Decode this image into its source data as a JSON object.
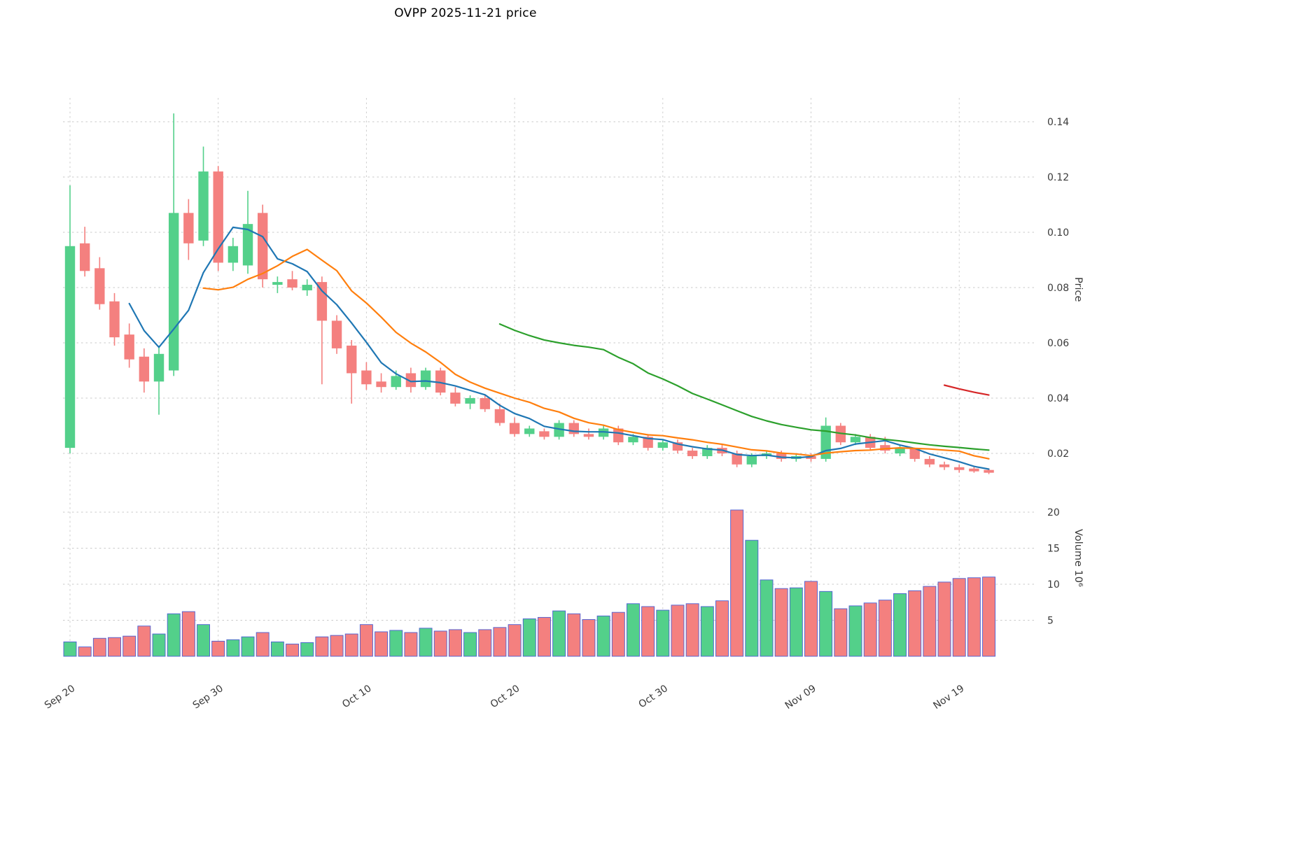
{
  "title": "OVPP  2025-11-21  price",
  "chart_data": {
    "type": "candlestick",
    "symbol": "OVPP",
    "as_of_date": "2025-11-21",
    "title": "OVPP  2025-11-21  price",
    "grid": true,
    "x_tick_labels": [
      "Sep 20",
      "Sep 30",
      "Oct 10",
      "Oct 20",
      "Oct 30",
      "Nov 09",
      "Nov 19"
    ],
    "x_tick_indices": [
      0,
      10,
      20,
      30,
      40,
      50,
      60
    ],
    "price_axis": {
      "label": "Price",
      "ticks": [
        0.02,
        0.04,
        0.06,
        0.08,
        0.1,
        0.12,
        0.14
      ],
      "range": [
        0.007,
        0.1486
      ]
    },
    "volume_axis": {
      "label": "Volume  10⁶",
      "ticks": [
        5,
        10,
        15,
        20
      ],
      "range": [
        0,
        21
      ],
      "unit": "millions"
    },
    "moving_averages": [
      {
        "window": 5,
        "color": "#1f77b4"
      },
      {
        "window": 10,
        "color": "#ff7f0e"
      },
      {
        "window": 30,
        "color": "#2ca02c"
      },
      {
        "window": 60,
        "color": "#d62728"
      }
    ],
    "colors": {
      "up": "#53d08a",
      "down": "#f4807f",
      "volume_edge": "#4c5fd5",
      "grid": "#c9c9c9",
      "tick_text": "#3a3a3a"
    },
    "candles": [
      {
        "date": "2025-09-20",
        "open": 0.022,
        "high": 0.117,
        "low": 0.02,
        "close": 0.095,
        "volume": 2.0
      },
      {
        "date": "2025-09-21",
        "open": 0.096,
        "high": 0.102,
        "low": 0.084,
        "close": 0.086,
        "volume": 1.3
      },
      {
        "date": "2025-09-22",
        "open": 0.087,
        "high": 0.091,
        "low": 0.072,
        "close": 0.074,
        "volume": 2.5
      },
      {
        "date": "2025-09-23",
        "open": 0.075,
        "high": 0.078,
        "low": 0.059,
        "close": 0.062,
        "volume": 2.6
      },
      {
        "date": "2025-09-24",
        "open": 0.063,
        "high": 0.067,
        "low": 0.051,
        "close": 0.054,
        "volume": 2.8
      },
      {
        "date": "2025-09-25",
        "open": 0.055,
        "high": 0.058,
        "low": 0.042,
        "close": 0.046,
        "volume": 4.2
      },
      {
        "date": "2025-09-26",
        "open": 0.046,
        "high": 0.059,
        "low": 0.034,
        "close": 0.056,
        "volume": 3.1
      },
      {
        "date": "2025-09-27",
        "open": 0.05,
        "high": 0.143,
        "low": 0.048,
        "close": 0.107,
        "volume": 5.9
      },
      {
        "date": "2025-09-28",
        "open": 0.107,
        "high": 0.112,
        "low": 0.09,
        "close": 0.096,
        "volume": 6.2
      },
      {
        "date": "2025-09-29",
        "open": 0.097,
        "high": 0.131,
        "low": 0.095,
        "close": 0.122,
        "volume": 4.4
      },
      {
        "date": "2025-09-30",
        "open": 0.122,
        "high": 0.124,
        "low": 0.086,
        "close": 0.089,
        "volume": 2.1
      },
      {
        "date": "2025-10-01",
        "open": 0.089,
        "high": 0.098,
        "low": 0.086,
        "close": 0.095,
        "volume": 2.3
      },
      {
        "date": "2025-10-02",
        "open": 0.088,
        "high": 0.115,
        "low": 0.085,
        "close": 0.103,
        "volume": 2.7
      },
      {
        "date": "2025-10-03",
        "open": 0.107,
        "high": 0.11,
        "low": 0.08,
        "close": 0.083,
        "volume": 3.3
      },
      {
        "date": "2025-10-04",
        "open": 0.081,
        "high": 0.084,
        "low": 0.078,
        "close": 0.082,
        "volume": 2.0
      },
      {
        "date": "2025-10-05",
        "open": 0.083,
        "high": 0.086,
        "low": 0.079,
        "close": 0.08,
        "volume": 1.7
      },
      {
        "date": "2025-10-06",
        "open": 0.079,
        "high": 0.083,
        "low": 0.077,
        "close": 0.081,
        "volume": 1.9
      },
      {
        "date": "2025-10-07",
        "open": 0.082,
        "high": 0.084,
        "low": 0.045,
        "close": 0.068,
        "volume": 2.7
      },
      {
        "date": "2025-10-08",
        "open": 0.068,
        "high": 0.07,
        "low": 0.056,
        "close": 0.058,
        "volume": 2.9
      },
      {
        "date": "2025-10-09",
        "open": 0.059,
        "high": 0.061,
        "low": 0.038,
        "close": 0.049,
        "volume": 3.1
      },
      {
        "date": "2025-10-10",
        "open": 0.05,
        "high": 0.053,
        "low": 0.043,
        "close": 0.045,
        "volume": 4.4
      },
      {
        "date": "2025-10-11",
        "open": 0.046,
        "high": 0.049,
        "low": 0.042,
        "close": 0.044,
        "volume": 3.4
      },
      {
        "date": "2025-10-12",
        "open": 0.044,
        "high": 0.05,
        "low": 0.043,
        "close": 0.048,
        "volume": 3.6
      },
      {
        "date": "2025-10-13",
        "open": 0.049,
        "high": 0.051,
        "low": 0.042,
        "close": 0.044,
        "volume": 3.3
      },
      {
        "date": "2025-10-14",
        "open": 0.044,
        "high": 0.051,
        "low": 0.043,
        "close": 0.05,
        "volume": 3.9
      },
      {
        "date": "2025-10-15",
        "open": 0.05,
        "high": 0.051,
        "low": 0.041,
        "close": 0.042,
        "volume": 3.5
      },
      {
        "date": "2025-10-16",
        "open": 0.042,
        "high": 0.044,
        "low": 0.037,
        "close": 0.038,
        "volume": 3.7
      },
      {
        "date": "2025-10-17",
        "open": 0.038,
        "high": 0.041,
        "low": 0.036,
        "close": 0.04,
        "volume": 3.3
      },
      {
        "date": "2025-10-18",
        "open": 0.04,
        "high": 0.041,
        "low": 0.035,
        "close": 0.036,
        "volume": 3.7
      },
      {
        "date": "2025-10-19",
        "open": 0.036,
        "high": 0.038,
        "low": 0.03,
        "close": 0.031,
        "volume": 4.0
      },
      {
        "date": "2025-10-20",
        "open": 0.031,
        "high": 0.033,
        "low": 0.026,
        "close": 0.027,
        "volume": 4.4
      },
      {
        "date": "2025-10-21",
        "open": 0.027,
        "high": 0.03,
        "low": 0.026,
        "close": 0.029,
        "volume": 5.2
      },
      {
        "date": "2025-10-22",
        "open": 0.028,
        "high": 0.029,
        "low": 0.025,
        "close": 0.026,
        "volume": 5.4
      },
      {
        "date": "2025-10-23",
        "open": 0.026,
        "high": 0.032,
        "low": 0.025,
        "close": 0.031,
        "volume": 6.3
      },
      {
        "date": "2025-10-24",
        "open": 0.031,
        "high": 0.032,
        "low": 0.026,
        "close": 0.027,
        "volume": 5.9
      },
      {
        "date": "2025-10-25",
        "open": 0.027,
        "high": 0.029,
        "low": 0.025,
        "close": 0.026,
        "volume": 5.1
      },
      {
        "date": "2025-10-26",
        "open": 0.026,
        "high": 0.03,
        "low": 0.025,
        "close": 0.029,
        "volume": 5.6
      },
      {
        "date": "2025-10-27",
        "open": 0.029,
        "high": 0.03,
        "low": 0.023,
        "close": 0.024,
        "volume": 6.1
      },
      {
        "date": "2025-10-28",
        "open": 0.024,
        "high": 0.027,
        "low": 0.023,
        "close": 0.026,
        "volume": 7.3
      },
      {
        "date": "2025-10-29",
        "open": 0.026,
        "high": 0.027,
        "low": 0.021,
        "close": 0.022,
        "volume": 6.9
      },
      {
        "date": "2025-10-30",
        "open": 0.022,
        "high": 0.025,
        "low": 0.021,
        "close": 0.024,
        "volume": 6.4
      },
      {
        "date": "2025-10-31",
        "open": 0.024,
        "high": 0.025,
        "low": 0.02,
        "close": 0.021,
        "volume": 7.1
      },
      {
        "date": "2025-11-01",
        "open": 0.021,
        "high": 0.022,
        "low": 0.018,
        "close": 0.019,
        "volume": 7.3
      },
      {
        "date": "2025-11-02",
        "open": 0.019,
        "high": 0.023,
        "low": 0.018,
        "close": 0.022,
        "volume": 6.9
      },
      {
        "date": "2025-11-03",
        "open": 0.022,
        "high": 0.023,
        "low": 0.019,
        "close": 0.02,
        "volume": 7.7
      },
      {
        "date": "2025-11-04",
        "open": 0.02,
        "high": 0.021,
        "low": 0.015,
        "close": 0.016,
        "volume": 20.3
      },
      {
        "date": "2025-11-05",
        "open": 0.016,
        "high": 0.02,
        "low": 0.015,
        "close": 0.019,
        "volume": 16.1
      },
      {
        "date": "2025-11-06",
        "open": 0.019,
        "high": 0.021,
        "low": 0.018,
        "close": 0.02,
        "volume": 10.6
      },
      {
        "date": "2025-11-07",
        "open": 0.02,
        "high": 0.021,
        "low": 0.017,
        "close": 0.018,
        "volume": 9.4
      },
      {
        "date": "2025-11-08",
        "open": 0.018,
        "high": 0.02,
        "low": 0.017,
        "close": 0.019,
        "volume": 9.5
      },
      {
        "date": "2025-11-09",
        "open": 0.019,
        "high": 0.02,
        "low": 0.017,
        "close": 0.018,
        "volume": 10.4
      },
      {
        "date": "2025-11-10",
        "open": 0.018,
        "high": 0.033,
        "low": 0.017,
        "close": 0.03,
        "volume": 9.0
      },
      {
        "date": "2025-11-11",
        "open": 0.03,
        "high": 0.031,
        "low": 0.023,
        "close": 0.024,
        "volume": 6.6
      },
      {
        "date": "2025-11-12",
        "open": 0.024,
        "high": 0.027,
        "low": 0.023,
        "close": 0.026,
        "volume": 7.0
      },
      {
        "date": "2025-11-13",
        "open": 0.026,
        "high": 0.027,
        "low": 0.021,
        "close": 0.022,
        "volume": 7.4
      },
      {
        "date": "2025-11-14",
        "open": 0.023,
        "high": 0.026,
        "low": 0.02,
        "close": 0.021,
        "volume": 7.8
      },
      {
        "date": "2025-11-15",
        "open": 0.02,
        "high": 0.023,
        "low": 0.019,
        "close": 0.022,
        "volume": 8.7
      },
      {
        "date": "2025-11-16",
        "open": 0.022,
        "high": 0.022,
        "low": 0.017,
        "close": 0.018,
        "volume": 9.1
      },
      {
        "date": "2025-11-17",
        "open": 0.018,
        "high": 0.019,
        "low": 0.015,
        "close": 0.016,
        "volume": 9.7
      },
      {
        "date": "2025-11-18",
        "open": 0.016,
        "high": 0.017,
        "low": 0.014,
        "close": 0.015,
        "volume": 10.3
      },
      {
        "date": "2025-11-19",
        "open": 0.015,
        "high": 0.016,
        "low": 0.013,
        "close": 0.014,
        "volume": 10.8
      },
      {
        "date": "2025-11-20",
        "open": 0.0145,
        "high": 0.0155,
        "low": 0.013,
        "close": 0.0135,
        "volume": 10.9
      },
      {
        "date": "2025-11-21",
        "open": 0.014,
        "high": 0.0145,
        "low": 0.0125,
        "close": 0.013,
        "volume": 11.0
      }
    ]
  }
}
